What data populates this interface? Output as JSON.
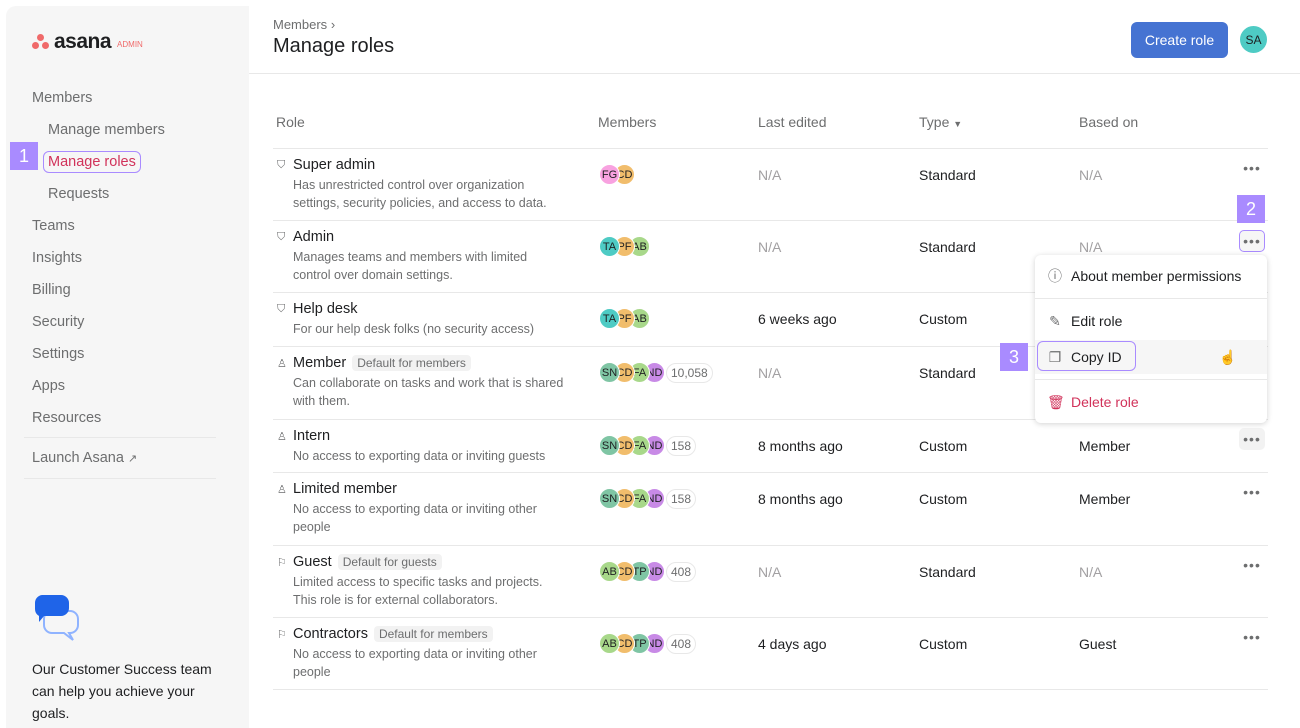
{
  "sidebar": {
    "logo_text": "asana",
    "logo_badge": "ADMIN",
    "items": [
      {
        "label": "Members",
        "indent": false
      },
      {
        "label": "Manage members",
        "indent": true
      },
      {
        "label": "Manage roles",
        "indent": true,
        "active": true
      },
      {
        "label": "Requests",
        "indent": true
      },
      {
        "label": "Teams"
      },
      {
        "label": "Insights"
      },
      {
        "label": "Billing"
      },
      {
        "label": "Security"
      },
      {
        "label": "Settings"
      },
      {
        "label": "Apps"
      },
      {
        "label": "Resources"
      }
    ],
    "launch_label": "Launch Asana",
    "help_text": "Our Customer Success team can help you achieve your goals."
  },
  "annotations": [
    "1",
    "2",
    "3"
  ],
  "header": {
    "breadcrumb": "Members",
    "title": "Manage roles",
    "create_button": "Create role",
    "user_initials": "SA"
  },
  "table": {
    "columns": [
      "Role",
      "Members",
      "Last edited",
      "Type",
      "Based on"
    ],
    "rows": [
      {
        "name": "Super admin",
        "icon": "shield-icon",
        "tag": "",
        "desc": "Has unrestricted control over organization settings, security policies, and access to data.",
        "avatars": [
          [
            "FG",
            "#f8a2e0"
          ],
          [
            "CD",
            "#f1bd6c"
          ]
        ],
        "count": "",
        "edited": "N/A",
        "type": "Standard",
        "based": "N/A"
      },
      {
        "name": "Admin",
        "icon": "shield-icon",
        "tag": "",
        "desc": "Manages teams and members with limited control over domain settings.",
        "avatars": [
          [
            "TA",
            "#4ecbc4"
          ],
          [
            "PF",
            "#f1bd6c"
          ],
          [
            "AB",
            "#a8d88a"
          ]
        ],
        "count": "",
        "edited": "N/A",
        "type": "Standard",
        "based": "N/A"
      },
      {
        "name": "Help desk",
        "icon": "shield-icon",
        "tag": "",
        "desc": "For our help desk folks (no security access)",
        "avatars": [
          [
            "TA",
            "#4ecbc4"
          ],
          [
            "PF",
            "#f1bd6c"
          ],
          [
            "AB",
            "#a8d88a"
          ]
        ],
        "count": "",
        "edited": "6 weeks ago",
        "type": "Custom",
        "based": ""
      },
      {
        "name": "Member",
        "icon": "person-icon",
        "tag": "Default for members",
        "desc": "Can collaborate on tasks and work that is shared with them.",
        "avatars": [
          [
            "SN",
            "#7fc5a4"
          ],
          [
            "CD",
            "#f1bd6c"
          ],
          [
            "FA",
            "#a8d88a"
          ],
          [
            "ND",
            "#c88ae6"
          ]
        ],
        "count": "10,058",
        "edited": "N/A",
        "type": "Standard",
        "based": ""
      },
      {
        "name": "Intern",
        "icon": "person-icon",
        "tag": "",
        "desc": "No access to exporting data or inviting guests",
        "avatars": [
          [
            "SN",
            "#7fc5a4"
          ],
          [
            "CD",
            "#f1bd6c"
          ],
          [
            "FA",
            "#a8d88a"
          ],
          [
            "ND",
            "#c88ae6"
          ]
        ],
        "count": "158",
        "edited": "8 months ago",
        "type": "Custom",
        "based": "Member"
      },
      {
        "name": "Limited member",
        "icon": "person-icon",
        "tag": "",
        "desc": "No access to exporting data or inviting other people",
        "avatars": [
          [
            "SN",
            "#7fc5a4"
          ],
          [
            "CD",
            "#f1bd6c"
          ],
          [
            "FA",
            "#a8d88a"
          ],
          [
            "ND",
            "#c88ae6"
          ]
        ],
        "count": "158",
        "edited": "8 months ago",
        "type": "Custom",
        "based": "Member"
      },
      {
        "name": "Guest",
        "icon": "guest-icon",
        "tag": "Default for guests",
        "desc": "Limited access to specific tasks and projects. This role is for external collaborators.",
        "avatars": [
          [
            "AB",
            "#a8d88a"
          ],
          [
            "CD",
            "#f1bd6c"
          ],
          [
            "TP",
            "#7fc5a4"
          ],
          [
            "ND",
            "#c88ae6"
          ]
        ],
        "count": "408",
        "edited": "N/A",
        "type": "Standard",
        "based": "N/A"
      },
      {
        "name": "Contractors",
        "icon": "guest-icon",
        "tag": "Default for members",
        "desc": "No access to exporting data or inviting other people",
        "avatars": [
          [
            "AB",
            "#a8d88a"
          ],
          [
            "CD",
            "#f1bd6c"
          ],
          [
            "TP",
            "#7fc5a4"
          ],
          [
            "ND",
            "#c88ae6"
          ]
        ],
        "count": "408",
        "edited": "4 days ago",
        "type": "Custom",
        "based": "Guest"
      }
    ]
  },
  "menu": {
    "items": [
      {
        "label": "About member permissions",
        "icon": "info-icon"
      },
      {
        "label": "Edit role",
        "icon": "pencil-icon"
      },
      {
        "label": "Copy ID",
        "icon": "copy-icon"
      },
      {
        "label": "Delete role",
        "icon": "trash-icon",
        "color": "#d1325a"
      }
    ]
  },
  "colors": {
    "accent": "#4573d2",
    "annotation": "#a98bff",
    "active_nav": "#d1325a"
  }
}
